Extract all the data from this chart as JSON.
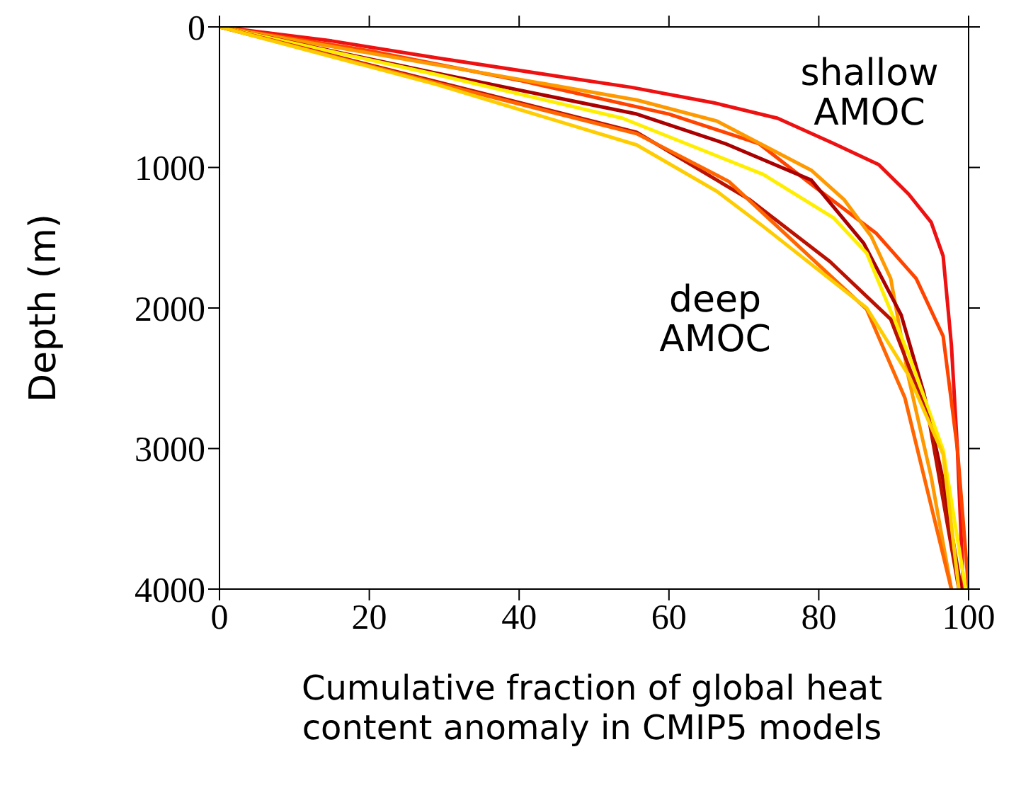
{
  "chart_data": {
    "type": "line",
    "xlabel": "Cumulative fraction of global heat content anomaly in CMIP5 models",
    "ylabel": "Depth (m)",
    "xlim": [
      0,
      100
    ],
    "xticks": [
      0,
      20,
      40,
      60,
      80,
      100
    ],
    "ylim": [
      4000,
      0
    ],
    "yticks": [
      0,
      1000,
      2000,
      3000,
      4000
    ],
    "marker": "none",
    "line_style": "solid",
    "annotations": [
      "shallow AMOC",
      "deep AMOC"
    ],
    "series": [
      {
        "color": "#ee1111",
        "x": [
          0,
          15,
          29,
          45,
          55,
          66,
          74.5,
          82,
          88,
          92,
          95,
          96.6,
          97.7,
          98.5,
          99.3
        ],
        "values": [
          0,
          100,
          220,
          350,
          430,
          540,
          650,
          830,
          980,
          1190,
          1390,
          1630,
          2260,
          3000,
          4000
        ]
      },
      {
        "color": "#ff4400",
        "x": [
          0,
          20,
          40,
          60,
          72,
          79,
          87.7,
          93,
          96.6,
          98.5,
          100
        ],
        "values": [
          0,
          170,
          380,
          620,
          830,
          1120,
          1470,
          1790,
          2200,
          3000,
          4000
        ]
      },
      {
        "color": "#ff9900",
        "x": [
          0,
          29,
          55.7,
          66.4,
          79,
          83.4,
          87,
          89.6,
          92,
          95,
          97.7
        ],
        "values": [
          0,
          270,
          520,
          670,
          1020,
          1230,
          1490,
          1790,
          2500,
          3200,
          4000
        ]
      },
      {
        "color": "#aa0000",
        "x": [
          0,
          29,
          55.7,
          67.5,
          79,
          86,
          91,
          94,
          96.5,
          99
        ],
        "values": [
          0,
          330,
          620,
          830,
          1090,
          1540,
          2050,
          2600,
          3200,
          4000
        ]
      },
      {
        "color": "#ffee00",
        "x": [
          0,
          29,
          53.8,
          72.6,
          82,
          86.4,
          92,
          96.6,
          99.6
        ],
        "values": [
          0,
          340,
          650,
          1050,
          1360,
          1610,
          2330,
          3010,
          4000
        ]
      },
      {
        "color": "#bb1100",
        "x": [
          0,
          29,
          55.7,
          70.8,
          81.5,
          89.6,
          94.7,
          98.7
        ],
        "values": [
          0,
          390,
          750,
          1230,
          1670,
          2080,
          2790,
          4000
        ]
      },
      {
        "color": "#ff6600",
        "x": [
          0,
          29,
          55.7,
          68,
          77.7,
          86.4,
          91.5,
          97.7
        ],
        "values": [
          0,
          400,
          760,
          1100,
          1580,
          2010,
          2640,
          4000
        ]
      },
      {
        "color": "#ffcc00",
        "x": [
          0,
          29,
          55.7,
          66.4,
          72.6,
          86.4,
          92,
          96.6,
          98.7
        ],
        "values": [
          0,
          410,
          840,
          1170,
          1420,
          2000,
          2480,
          3040,
          4000
        ]
      }
    ]
  }
}
